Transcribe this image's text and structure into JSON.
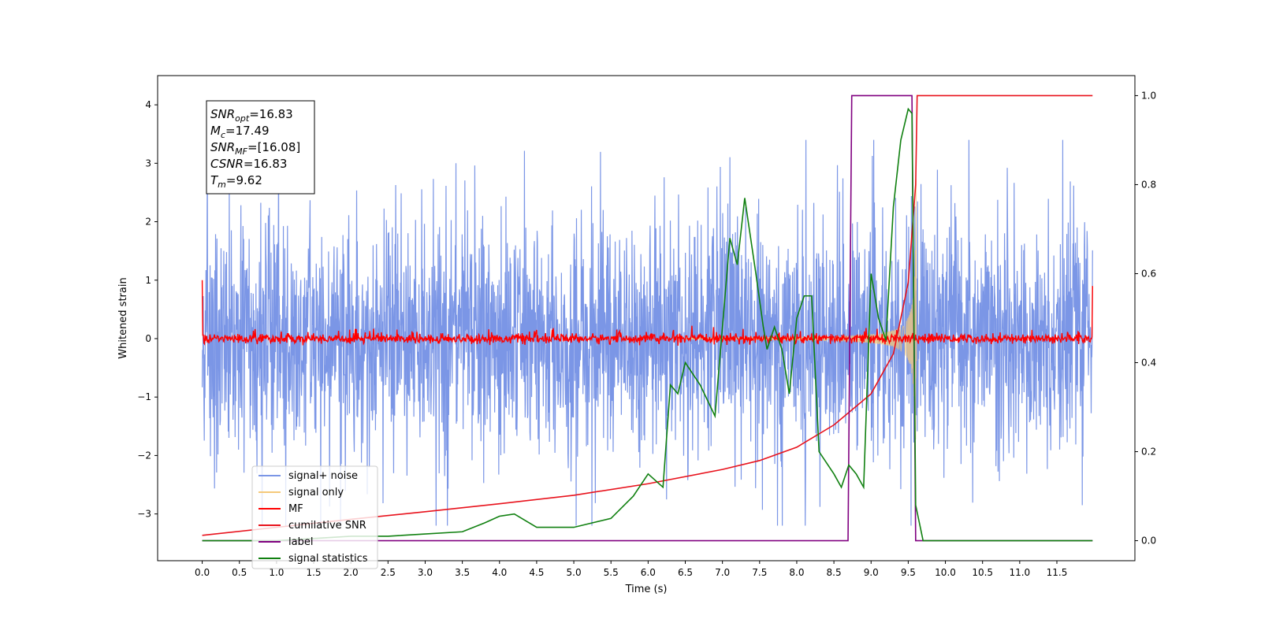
{
  "chart_data": {
    "type": "line",
    "xlabel": "Time (s)",
    "ylabel_left": "Whitened strain",
    "ylabel_right": "",
    "xlim": [
      -0.6,
      12.55
    ],
    "ylim_left": [
      -3.8,
      4.5
    ],
    "ylim_right": [
      -0.045,
      1.045
    ],
    "x_ticks": [
      "0.0",
      "0.5",
      "1.0",
      "1.5",
      "2.0",
      "2.5",
      "3.0",
      "3.5",
      "4.0",
      "4.5",
      "5.0",
      "5.5",
      "6.0",
      "6.5",
      "7.0",
      "7.5",
      "8.0",
      "8.5",
      "9.0",
      "9.5",
      "10.0",
      "10.5",
      "11.0",
      "11.5"
    ],
    "x_tick_values": [
      0.0,
      0.5,
      1.0,
      1.5,
      2.0,
      2.5,
      3.0,
      3.5,
      4.0,
      4.5,
      5.0,
      5.5,
      6.0,
      6.5,
      7.0,
      7.5,
      8.0,
      8.5,
      9.0,
      9.5,
      10.0,
      10.5,
      11.0,
      11.5
    ],
    "y_left_ticks": [
      "−3",
      "−2",
      "−1",
      "0",
      "1",
      "2",
      "3",
      "4"
    ],
    "y_left_tick_values": [
      -3,
      -2,
      -1,
      0,
      1,
      2,
      3,
      4
    ],
    "y_right_ticks": [
      "0.0",
      "0.2",
      "0.4",
      "0.6",
      "0.8",
      "1.0"
    ],
    "y_right_tick_values": [
      0.0,
      0.2,
      0.4,
      0.6,
      0.8,
      1.0
    ],
    "grid": false,
    "legend_position": "lower-left",
    "annotation": {
      "lines": [
        {
          "base": "SNR",
          "sub": "opt",
          "value": "=16.83"
        },
        {
          "base": "M",
          "sub": "c",
          "value": "=17.49"
        },
        {
          "base": "SNR",
          "sub": "MF",
          "value": "=[16.08]"
        },
        {
          "base": "CSNR",
          "sub": "",
          "value": "=16.83"
        },
        {
          "base": "T",
          "sub": "m",
          "value": "=9.62"
        }
      ]
    },
    "series": [
      {
        "name": "signal+ noise",
        "color": "#7b96e6",
        "axis": "left",
        "noise_band": [
          -2.4,
          2.7
        ],
        "x_range": [
          0.0,
          11.98
        ]
      },
      {
        "name": "signal only",
        "color": "#f5c97a",
        "axis": "left",
        "chirp_peak_time": 9.62,
        "chirp_max_amplitude": 3.0
      },
      {
        "name": "MF",
        "color": "#ff0000",
        "axis": "left",
        "baseline": 0.0,
        "edge_values": [
          1.0,
          0.9
        ]
      },
      {
        "name": "cumilative SNR",
        "color": "#e8121c",
        "axis": "right",
        "x": [
          0.0,
          1.0,
          2.0,
          3.0,
          4.0,
          5.0,
          6.0,
          7.0,
          7.5,
          8.0,
          8.5,
          9.0,
          9.3,
          9.5,
          9.6,
          9.62,
          11.98
        ],
        "y": [
          0.012,
          0.03,
          0.048,
          0.065,
          0.083,
          0.102,
          0.128,
          0.16,
          0.18,
          0.21,
          0.26,
          0.33,
          0.42,
          0.58,
          0.8,
          1.0,
          1.0
        ]
      },
      {
        "name": "label",
        "color": "#800080",
        "axis": "right",
        "x": [
          0.0,
          8.69,
          8.74,
          9.55,
          9.6,
          11.98
        ],
        "y": [
          0.0,
          0.0,
          1.0,
          1.0,
          0.0,
          0.0
        ]
      },
      {
        "name": "signal statistics",
        "color": "#108010",
        "axis": "right",
        "x": [
          0.0,
          1.0,
          2.0,
          2.5,
          3.0,
          3.5,
          3.8,
          4.0,
          4.2,
          4.5,
          5.0,
          5.5,
          5.8,
          6.0,
          6.2,
          6.3,
          6.4,
          6.5,
          6.7,
          6.9,
          7.0,
          7.1,
          7.2,
          7.3,
          7.45,
          7.55,
          7.6,
          7.7,
          7.8,
          7.9,
          8.0,
          8.1,
          8.2,
          8.3,
          8.5,
          8.6,
          8.7,
          8.8,
          8.9,
          9.0,
          9.1,
          9.2,
          9.3,
          9.4,
          9.5,
          9.55,
          9.6,
          9.7,
          11.98
        ],
        "y": [
          0.0,
          0.0,
          0.01,
          0.01,
          0.015,
          0.02,
          0.04,
          0.055,
          0.06,
          0.03,
          0.03,
          0.05,
          0.1,
          0.15,
          0.12,
          0.35,
          0.33,
          0.4,
          0.35,
          0.28,
          0.48,
          0.68,
          0.62,
          0.77,
          0.6,
          0.48,
          0.43,
          0.48,
          0.43,
          0.33,
          0.5,
          0.55,
          0.55,
          0.2,
          0.15,
          0.12,
          0.17,
          0.15,
          0.12,
          0.6,
          0.5,
          0.45,
          0.75,
          0.9,
          0.97,
          0.96,
          0.08,
          0.0,
          0.0
        ]
      }
    ]
  }
}
